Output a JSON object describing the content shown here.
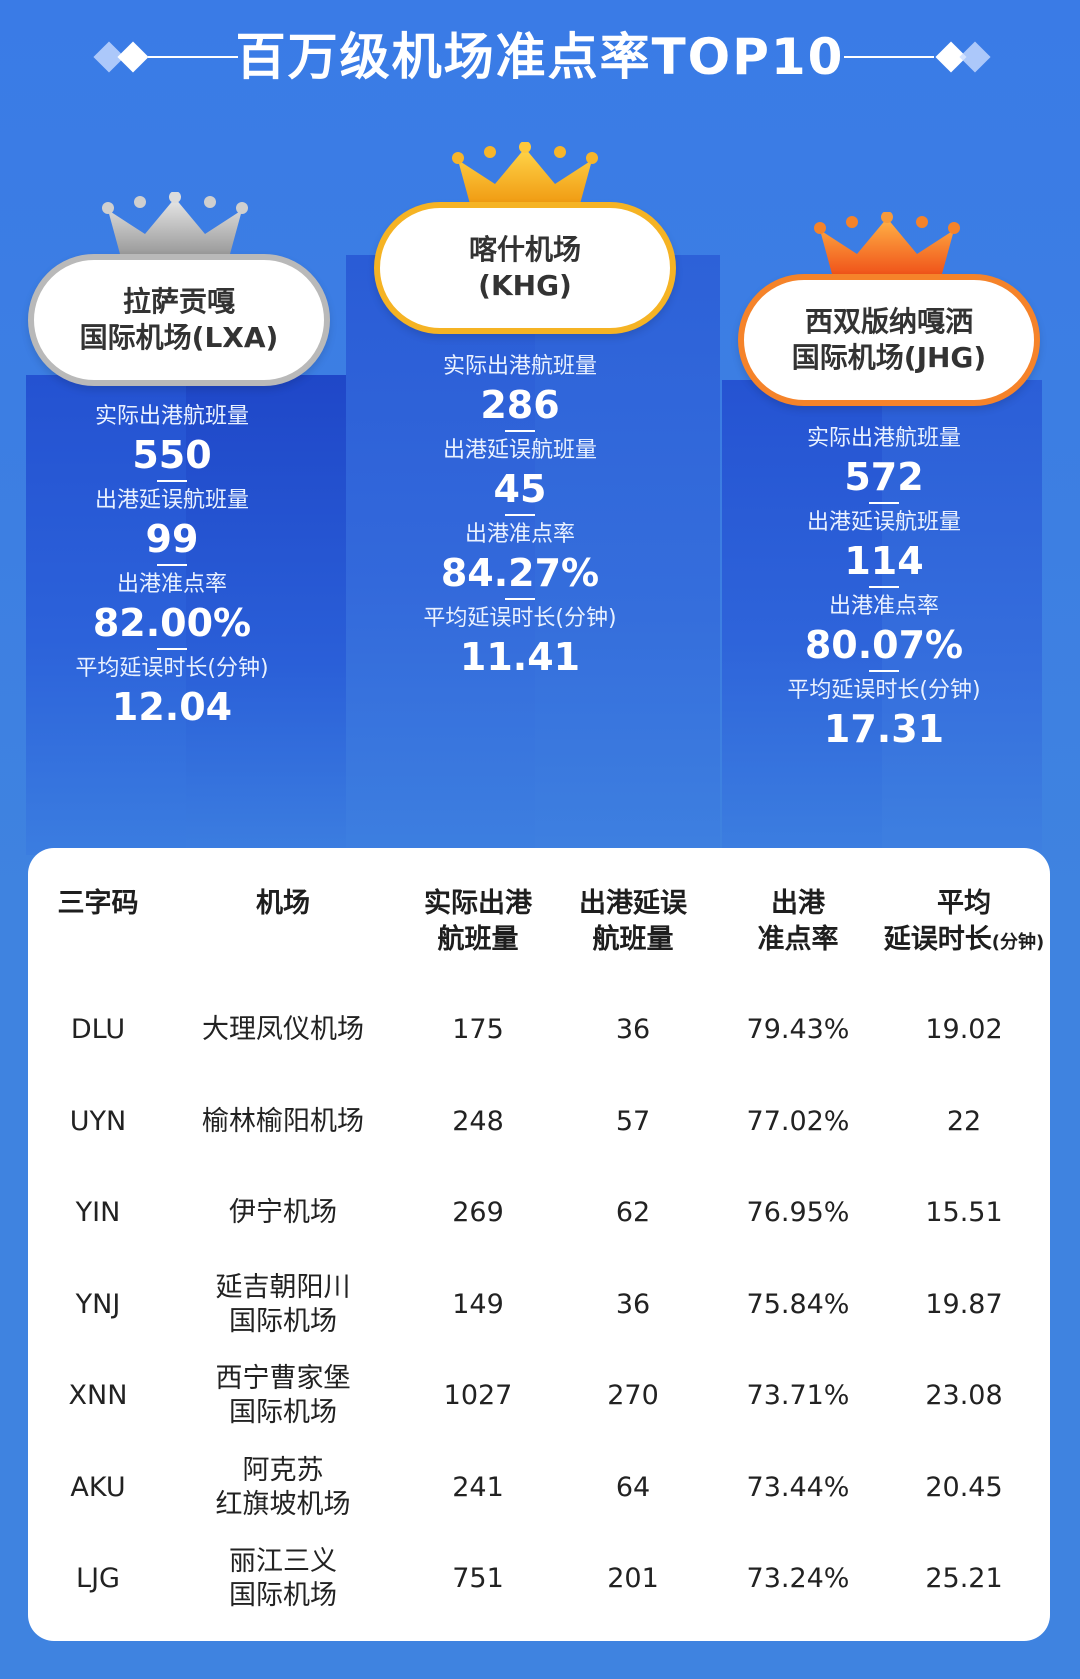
{
  "title": "百万级机场准点率TOP10",
  "colors": {
    "background": "#3f83e0",
    "silver": "#b9b9b9",
    "gold": "#f5b324",
    "orange": "#f5832a"
  },
  "podium": [
    {
      "rank_crown": "silver-crown-icon",
      "name_line1": "拉萨贡嘎",
      "name_line2": "国际机场(LXA)",
      "label_flights": "实际出港航班量",
      "flights": "550",
      "label_delayed": "出港延误航班量",
      "delayed": "99",
      "label_ontime": "出港准点率",
      "ontime": "82.00%",
      "label_avg_delay": "平均延误时长(分钟)",
      "avg_delay": "12.04"
    },
    {
      "rank_crown": "gold-crown-icon",
      "name_line1": "喀什机场",
      "name_line2": "(KHG)",
      "label_flights": "实际出港航班量",
      "flights": "286",
      "label_delayed": "出港延误航班量",
      "delayed": "45",
      "label_ontime": "出港准点率",
      "ontime": "84.27%",
      "label_avg_delay": "平均延误时长(分钟)",
      "avg_delay": "11.41"
    },
    {
      "rank_crown": "bronze-crown-icon",
      "name_line1": "西双版纳嘎洒",
      "name_line2": "国际机场(JHG)",
      "label_flights": "实际出港航班量",
      "flights": "572",
      "label_delayed": "出港延误航班量",
      "delayed": "114",
      "label_ontime": "出港准点率",
      "ontime": "80.07%",
      "label_avg_delay": "平均延误时长(分钟)",
      "avg_delay": "17.31"
    }
  ],
  "table": {
    "headers": {
      "code": "三字码",
      "airport": "机场",
      "flights_1": "实际出港",
      "flights_2": "航班量",
      "delayed_1": "出港延误",
      "delayed_2": "航班量",
      "ontime_1": "出港",
      "ontime_2": "准点率",
      "avg_1": "平均",
      "avg_2": "延误时长",
      "avg_unit": "(分钟)"
    },
    "rows": [
      {
        "code": "DLU",
        "name1": "大理凤仪机场",
        "name2": "",
        "flights": "175",
        "delayed": "36",
        "ontime": "79.43%",
        "avg": "19.02"
      },
      {
        "code": "UYN",
        "name1": "榆林榆阳机场",
        "name2": "",
        "flights": "248",
        "delayed": "57",
        "ontime": "77.02%",
        "avg": "22"
      },
      {
        "code": "YIN",
        "name1": "伊宁机场",
        "name2": "",
        "flights": "269",
        "delayed": "62",
        "ontime": "76.95%",
        "avg": "15.51"
      },
      {
        "code": "YNJ",
        "name1": "延吉朝阳川",
        "name2": "国际机场",
        "flights": "149",
        "delayed": "36",
        "ontime": "75.84%",
        "avg": "19.87"
      },
      {
        "code": "XNN",
        "name1": "西宁曹家堡",
        "name2": "国际机场",
        "flights": "1027",
        "delayed": "270",
        "ontime": "73.71%",
        "avg": "23.08"
      },
      {
        "code": "AKU",
        "name1": "阿克苏",
        "name2": "红旗坡机场",
        "flights": "241",
        "delayed": "64",
        "ontime": "73.44%",
        "avg": "20.45"
      },
      {
        "code": "LJG",
        "name1": "丽江三义",
        "name2": "国际机场",
        "flights": "751",
        "delayed": "201",
        "ontime": "73.24%",
        "avg": "25.21"
      }
    ]
  }
}
